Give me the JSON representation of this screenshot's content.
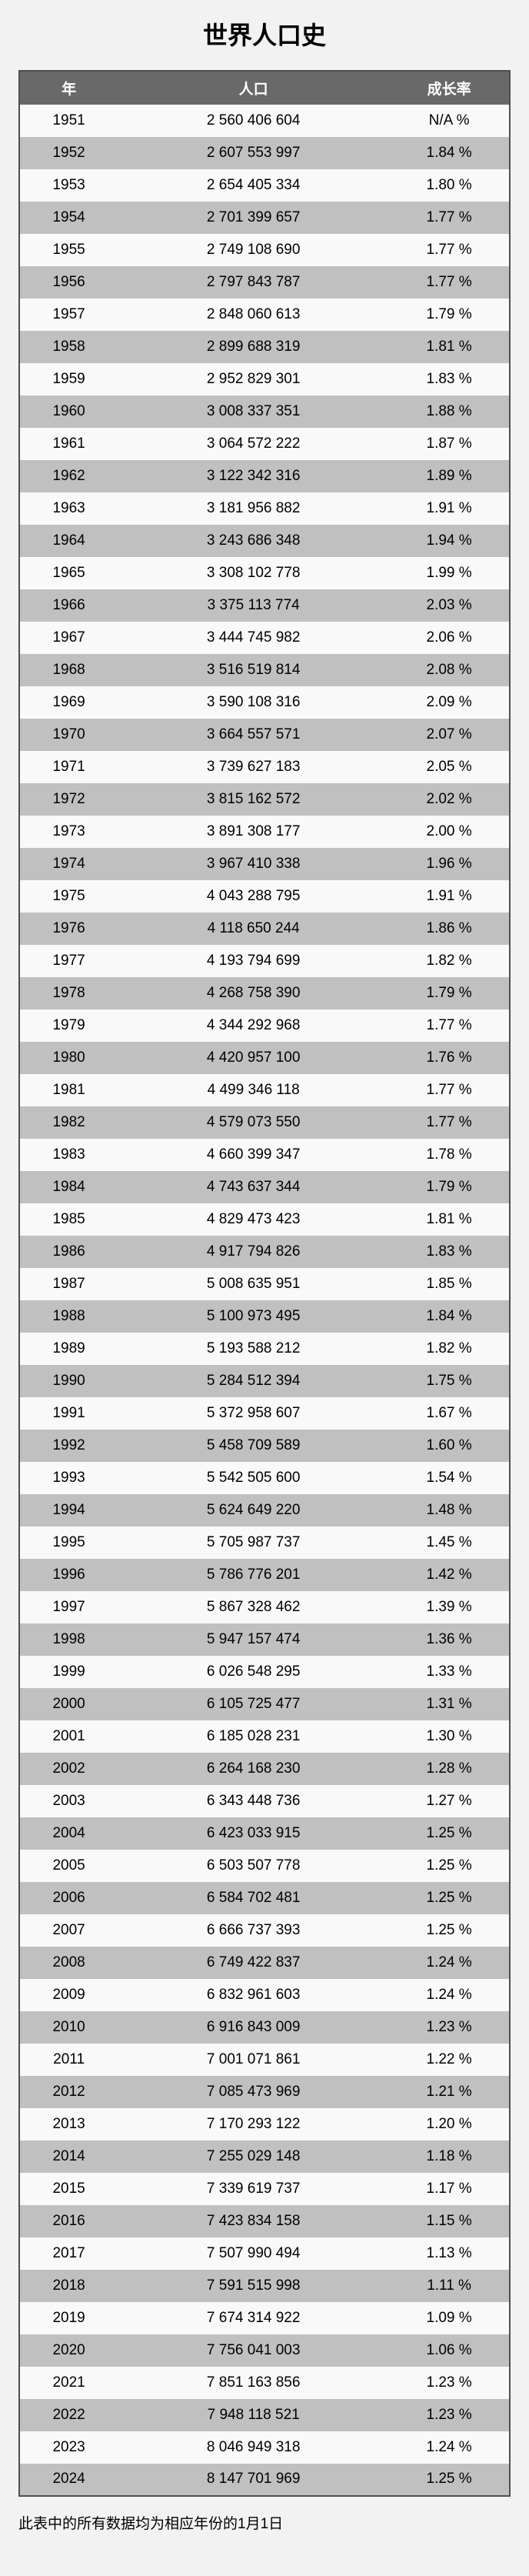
{
  "chart_data": {
    "type": "table",
    "title": "世界人口史",
    "columns": [
      "年",
      "人口",
      "成长率"
    ],
    "footnote": "此表中的所有数据均为相应年份的1月1日",
    "rows": [
      [
        "1951",
        "2 560 406 604",
        "N/A %"
      ],
      [
        "1952",
        "2 607 553 997",
        "1.84 %"
      ],
      [
        "1953",
        "2 654 405 334",
        "1.80 %"
      ],
      [
        "1954",
        "2 701 399 657",
        "1.77 %"
      ],
      [
        "1955",
        "2 749 108 690",
        "1.77 %"
      ],
      [
        "1956",
        "2 797 843 787",
        "1.77 %"
      ],
      [
        "1957",
        "2 848 060 613",
        "1.79 %"
      ],
      [
        "1958",
        "2 899 688 319",
        "1.81 %"
      ],
      [
        "1959",
        "2 952 829 301",
        "1.83 %"
      ],
      [
        "1960",
        "3 008 337 351",
        "1.88 %"
      ],
      [
        "1961",
        "3 064 572 222",
        "1.87 %"
      ],
      [
        "1962",
        "3 122 342 316",
        "1.89 %"
      ],
      [
        "1963",
        "3 181 956 882",
        "1.91 %"
      ],
      [
        "1964",
        "3 243 686 348",
        "1.94 %"
      ],
      [
        "1965",
        "3 308 102 778",
        "1.99 %"
      ],
      [
        "1966",
        "3 375 113 774",
        "2.03 %"
      ],
      [
        "1967",
        "3 444 745 982",
        "2.06 %"
      ],
      [
        "1968",
        "3 516 519 814",
        "2.08 %"
      ],
      [
        "1969",
        "3 590 108 316",
        "2.09 %"
      ],
      [
        "1970",
        "3 664 557 571",
        "2.07 %"
      ],
      [
        "1971",
        "3 739 627 183",
        "2.05 %"
      ],
      [
        "1972",
        "3 815 162 572",
        "2.02 %"
      ],
      [
        "1973",
        "3 891 308 177",
        "2.00 %"
      ],
      [
        "1974",
        "3 967 410 338",
        "1.96 %"
      ],
      [
        "1975",
        "4 043 288 795",
        "1.91 %"
      ],
      [
        "1976",
        "4 118 650 244",
        "1.86 %"
      ],
      [
        "1977",
        "4 193 794 699",
        "1.82 %"
      ],
      [
        "1978",
        "4 268 758 390",
        "1.79 %"
      ],
      [
        "1979",
        "4 344 292 968",
        "1.77 %"
      ],
      [
        "1980",
        "4 420 957 100",
        "1.76 %"
      ],
      [
        "1981",
        "4 499 346 118",
        "1.77 %"
      ],
      [
        "1982",
        "4 579 073 550",
        "1.77 %"
      ],
      [
        "1983",
        "4 660 399 347",
        "1.78 %"
      ],
      [
        "1984",
        "4 743 637 344",
        "1.79 %"
      ],
      [
        "1985",
        "4 829 473 423",
        "1.81 %"
      ],
      [
        "1986",
        "4 917 794 826",
        "1.83 %"
      ],
      [
        "1987",
        "5 008 635 951",
        "1.85 %"
      ],
      [
        "1988",
        "5 100 973 495",
        "1.84 %"
      ],
      [
        "1989",
        "5 193 588 212",
        "1.82 %"
      ],
      [
        "1990",
        "5 284 512 394",
        "1.75 %"
      ],
      [
        "1991",
        "5 372 958 607",
        "1.67 %"
      ],
      [
        "1992",
        "5 458 709 589",
        "1.60 %"
      ],
      [
        "1993",
        "5 542 505 600",
        "1.54 %"
      ],
      [
        "1994",
        "5 624 649 220",
        "1.48 %"
      ],
      [
        "1995",
        "5 705 987 737",
        "1.45 %"
      ],
      [
        "1996",
        "5 786 776 201",
        "1.42 %"
      ],
      [
        "1997",
        "5 867 328 462",
        "1.39 %"
      ],
      [
        "1998",
        "5 947 157 474",
        "1.36 %"
      ],
      [
        "1999",
        "6 026 548 295",
        "1.33 %"
      ],
      [
        "2000",
        "6 105 725 477",
        "1.31 %"
      ],
      [
        "2001",
        "6 185 028 231",
        "1.30 %"
      ],
      [
        "2002",
        "6 264 168 230",
        "1.28 %"
      ],
      [
        "2003",
        "6 343 448 736",
        "1.27 %"
      ],
      [
        "2004",
        "6 423 033 915",
        "1.25 %"
      ],
      [
        "2005",
        "6 503 507 778",
        "1.25 %"
      ],
      [
        "2006",
        "6 584 702 481",
        "1.25 %"
      ],
      [
        "2007",
        "6 666 737 393",
        "1.25 %"
      ],
      [
        "2008",
        "6 749 422 837",
        "1.24 %"
      ],
      [
        "2009",
        "6 832 961 603",
        "1.24 %"
      ],
      [
        "2010",
        "6 916 843 009",
        "1.23 %"
      ],
      [
        "2011",
        "7 001 071 861",
        "1.22 %"
      ],
      [
        "2012",
        "7 085 473 969",
        "1.21 %"
      ],
      [
        "2013",
        "7 170 293 122",
        "1.20 %"
      ],
      [
        "2014",
        "7 255 029 148",
        "1.18 %"
      ],
      [
        "2015",
        "7 339 619 737",
        "1.17 %"
      ],
      [
        "2016",
        "7 423 834 158",
        "1.15 %"
      ],
      [
        "2017",
        "7 507 990 494",
        "1.13 %"
      ],
      [
        "2018",
        "7 591 515 998",
        "1.11 %"
      ],
      [
        "2019",
        "7 674 314 922",
        "1.09 %"
      ],
      [
        "2020",
        "7 756 041 003",
        "1.06 %"
      ],
      [
        "2021",
        "7 851 163 856",
        "1.23 %"
      ],
      [
        "2022",
        "7 948 118 521",
        "1.23 %"
      ],
      [
        "2023",
        "8 046 949 318",
        "1.24 %"
      ],
      [
        "2024",
        "8 147 701 969",
        "1.25 %"
      ]
    ]
  },
  "colors": {
    "page_background": "#f2f2f2",
    "header_background": "#696969",
    "header_text": "#ffffff",
    "row_odd_background": "#f9f9f9",
    "row_even_background": "#c0c0c0",
    "table_border": "#4f4f4f",
    "body_text": "#000000"
  }
}
